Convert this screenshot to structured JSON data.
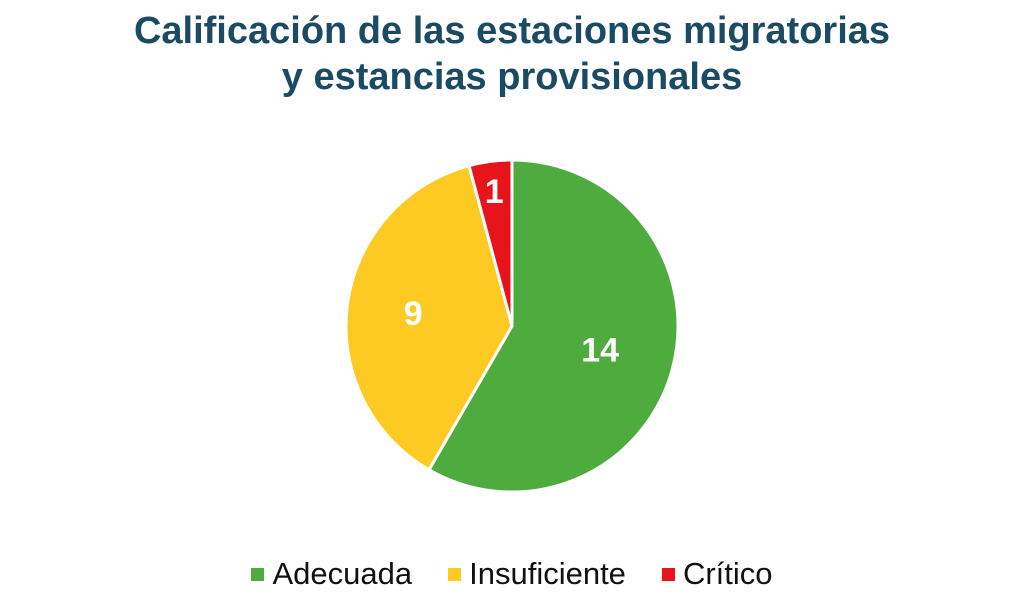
{
  "chart_data": {
    "type": "pie",
    "title_line1": "Calificación de las estaciones migratorias",
    "title_line2": "y estancias provisionales",
    "categories": [
      "Adecuada",
      "Insuficiente",
      "Crítico"
    ],
    "values": [
      14,
      9,
      1
    ],
    "colors": [
      "#4eac3e",
      "#fcca22",
      "#e8141b"
    ],
    "start_angle_deg": 0,
    "direction": "clockwise",
    "legend_position": "bottom"
  }
}
